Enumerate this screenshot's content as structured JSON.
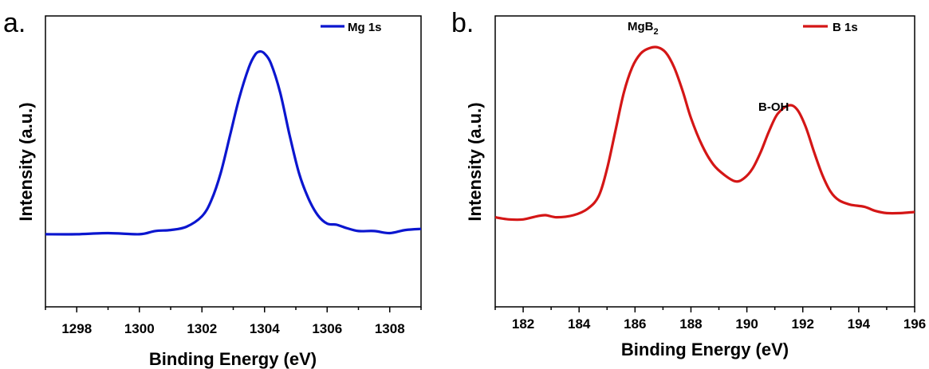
{
  "chart_data": [
    {
      "panel_label": "a.",
      "type": "line",
      "xlabel": "Binding Energy (eV)",
      "ylabel": "Intensity (a.u.)",
      "xlim": [
        1297,
        1309
      ],
      "ylim": [
        0,
        1
      ],
      "x_ticks": [
        1298,
        1300,
        1302,
        1304,
        1306,
        1308
      ],
      "y_ticks_shown": false,
      "legend": {
        "position": "top-right"
      },
      "annotations": [],
      "series": [
        {
          "name": "Mg 1s",
          "color": "#0b16cf",
          "x": [
            1297,
            1298,
            1299,
            1300,
            1300.5,
            1301,
            1301.5,
            1302,
            1302.3,
            1302.6,
            1302.9,
            1303.2,
            1303.5,
            1303.7,
            1303.85,
            1304,
            1304.2,
            1304.5,
            1304.8,
            1305.1,
            1305.4,
            1305.7,
            1306,
            1306.3,
            1306.6,
            1307,
            1307.5,
            1308,
            1308.5,
            1309
          ],
          "y": [
            0.11,
            0.11,
            0.115,
            0.11,
            0.125,
            0.13,
            0.145,
            0.195,
            0.27,
            0.4,
            0.58,
            0.76,
            0.9,
            0.96,
            0.975,
            0.965,
            0.92,
            0.78,
            0.58,
            0.4,
            0.28,
            0.2,
            0.16,
            0.155,
            0.14,
            0.125,
            0.125,
            0.115,
            0.13,
            0.135
          ]
        }
      ]
    },
    {
      "panel_label": "b.",
      "type": "line",
      "xlabel": "Binding Energy (eV)",
      "ylabel": "Intensity (a.u.)",
      "xlim": [
        181,
        196
      ],
      "ylim": [
        0,
        1
      ],
      "x_ticks": [
        182,
        184,
        186,
        188,
        190,
        192,
        194,
        196
      ],
      "y_ticks_shown": false,
      "legend": {
        "position": "top-right"
      },
      "annotations": [
        {
          "text": "MgB",
          "subscript": "2",
          "x": 186.7,
          "y": 1.0
        },
        {
          "text": "B-OH",
          "x": 191.3,
          "y": 0.66
        }
      ],
      "series": [
        {
          "name": "B 1s",
          "color": "#d41616",
          "x": [
            181,
            181.5,
            182,
            182.5,
            182.8,
            183.2,
            183.8,
            184.3,
            184.7,
            185.0,
            185.3,
            185.6,
            185.9,
            186.2,
            186.5,
            186.8,
            187.1,
            187.4,
            187.7,
            188.0,
            188.4,
            188.8,
            189.2,
            189.6,
            189.9,
            190.2,
            190.5,
            190.8,
            191.1,
            191.5,
            191.8,
            192.1,
            192.4,
            192.7,
            193.0,
            193.3,
            193.7,
            194.2,
            194.6,
            195.0,
            195.5,
            196
          ],
          "y": [
            0.19,
            0.18,
            0.18,
            0.195,
            0.2,
            0.19,
            0.2,
            0.23,
            0.29,
            0.42,
            0.6,
            0.78,
            0.9,
            0.965,
            0.99,
            0.995,
            0.97,
            0.9,
            0.79,
            0.66,
            0.53,
            0.44,
            0.39,
            0.36,
            0.375,
            0.42,
            0.5,
            0.6,
            0.68,
            0.72,
            0.7,
            0.62,
            0.5,
            0.39,
            0.31,
            0.27,
            0.25,
            0.24,
            0.22,
            0.21,
            0.21,
            0.215
          ]
        }
      ]
    }
  ]
}
